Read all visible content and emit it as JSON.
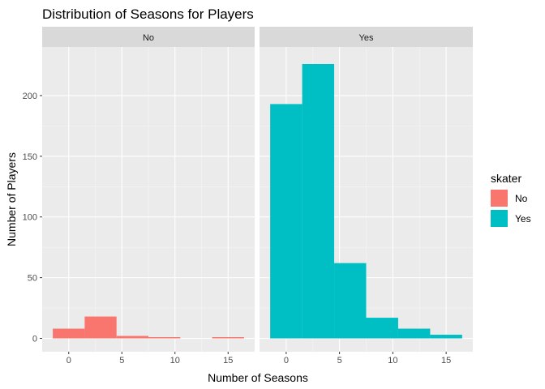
{
  "chart_data": {
    "type": "bar",
    "title": "Distribution of Seasons for Players",
    "xlabel": "Number of Seasons",
    "ylabel": "Number of Players",
    "xlim": [
      -2.5,
      17.5
    ],
    "ylim": [
      -11,
      240
    ],
    "x_ticks": [
      0,
      5,
      10,
      15
    ],
    "y_ticks": [
      0,
      50,
      100,
      150,
      200
    ],
    "x_tick_labels": [
      "0",
      "5",
      "10",
      "15"
    ],
    "y_tick_labels": [
      "0",
      "50",
      "100",
      "150",
      "200"
    ],
    "bin_width": 3,
    "grid": true,
    "legend": {
      "title": "skater",
      "position": "right",
      "entries": [
        {
          "label": "No",
          "color": "#F8766D"
        },
        {
          "label": "Yes",
          "color": "#00BFC4"
        }
      ]
    },
    "facets": [
      {
        "strip": "No",
        "color": "#F8766D",
        "bins": [
          {
            "start": -1.5,
            "end": 1.5,
            "count": 8
          },
          {
            "start": 1.5,
            "end": 4.5,
            "count": 18
          },
          {
            "start": 4.5,
            "end": 7.5,
            "count": 2
          },
          {
            "start": 7.5,
            "end": 10.5,
            "count": 1
          },
          {
            "start": 10.5,
            "end": 13.5,
            "count": 0
          },
          {
            "start": 13.5,
            "end": 16.5,
            "count": 1
          }
        ]
      },
      {
        "strip": "Yes",
        "color": "#00BFC4",
        "bins": [
          {
            "start": -1.5,
            "end": 1.5,
            "count": 193
          },
          {
            "start": 1.5,
            "end": 4.5,
            "count": 226
          },
          {
            "start": 4.5,
            "end": 7.5,
            "count": 62
          },
          {
            "start": 7.5,
            "end": 10.5,
            "count": 17
          },
          {
            "start": 10.5,
            "end": 13.5,
            "count": 8
          },
          {
            "start": 13.5,
            "end": 16.5,
            "count": 3
          }
        ]
      }
    ]
  }
}
